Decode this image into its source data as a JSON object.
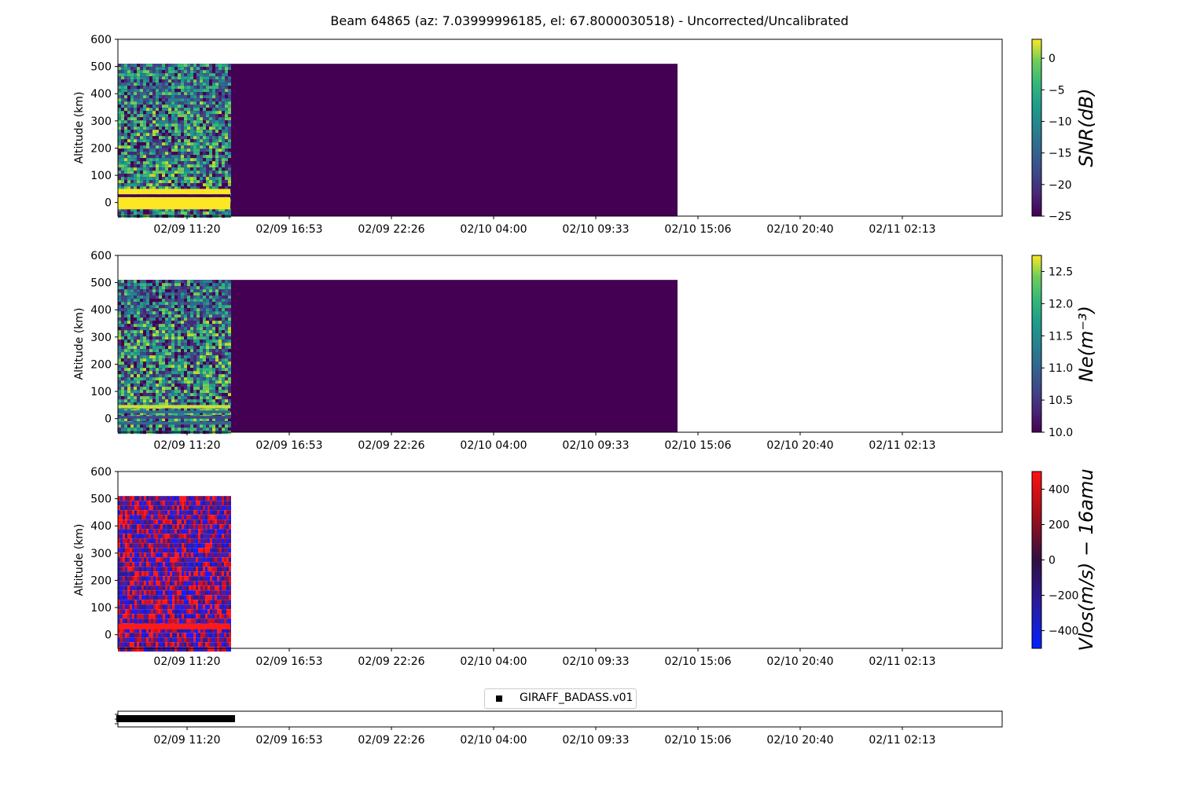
{
  "figure": {
    "title": "Beam 64865 (az: 7.03999996185, el: 67.8000030518) - Uncorrected/Uncalibrated"
  },
  "x_ticks": [
    "02/09 11:20",
    "02/09 16:53",
    "02/09 22:26",
    "02/10 04:00",
    "02/10 09:33",
    "02/10 15:06",
    "02/10 20:40",
    "02/11 02:13"
  ],
  "chart_data": [
    {
      "type": "heatmap",
      "name": "snr-panel",
      "ylabel": "Altitude (km)",
      "ylim": [
        -50,
        600
      ],
      "y_ticks": [
        0,
        100,
        200,
        300,
        400,
        500,
        600
      ],
      "x_ticks": [
        "02/09 11:20",
        "02/09 16:53",
        "02/09 22:26",
        "02/10 04:00",
        "02/10 09:33",
        "02/10 15:06",
        "02/10 20:40",
        "02/11 02:13"
      ],
      "colorbar": {
        "label": "SNR(dB)",
        "range": [
          -25,
          3
        ],
        "ticks": [
          -25,
          -20,
          -15,
          -10,
          -5,
          0
        ],
        "colormap": "viridis"
      },
      "data_altitude_range": [
        -50,
        510
      ],
      "observed_x_end": "02/09 14:40",
      "padded_x_end": "02/10 13:55",
      "fill_value": -25
    },
    {
      "type": "heatmap",
      "name": "ne-panel",
      "ylabel": "Altitude (km)",
      "ylim": [
        -50,
        600
      ],
      "y_ticks": [
        0,
        100,
        200,
        300,
        400,
        500,
        600
      ],
      "x_ticks": [
        "02/09 11:20",
        "02/09 16:53",
        "02/09 22:26",
        "02/10 04:00",
        "02/10 09:33",
        "02/10 15:06",
        "02/10 20:40",
        "02/11 02:13"
      ],
      "colorbar": {
        "label": "Ne(m⁻³)",
        "range": [
          10,
          12.75
        ],
        "ticks": [
          "10.0",
          "10.5",
          "11.0",
          "11.5",
          "12.0",
          "12.5"
        ],
        "colormap": "viridis"
      },
      "data_altitude_range": [
        -50,
        510
      ],
      "observed_x_end": "02/09 14:40",
      "padded_x_end": "02/10 13:55",
      "fill_value": 10
    },
    {
      "type": "heatmap",
      "name": "vlos-panel",
      "ylabel": "Altitude (km)",
      "ylim": [
        -50,
        600
      ],
      "y_ticks": [
        0,
        100,
        200,
        300,
        400,
        500,
        600
      ],
      "x_ticks": [
        "02/09 11:20",
        "02/09 16:53",
        "02/09 22:26",
        "02/10 04:00",
        "02/10 09:33",
        "02/10 15:06",
        "02/10 20:40",
        "02/11 02:13"
      ],
      "colorbar": {
        "label": "Vlos(m/s) − 16amu",
        "range": [
          -500,
          500
        ],
        "ticks": [
          -400,
          -200,
          0,
          200,
          400
        ],
        "colormap": "blue-black-red"
      },
      "data_altitude_range": [
        -50,
        510
      ],
      "observed_x_end": "02/09 14:40"
    },
    {
      "type": "scatter",
      "name": "timeline-panel",
      "legend": [
        "GIRAFF_BADASS.v01"
      ],
      "legend_position": "top-center",
      "x_ticks": [
        "02/09 11:20",
        "02/09 16:53",
        "02/09 22:26",
        "02/10 04:00",
        "02/10 09:33",
        "02/10 15:06",
        "02/10 20:40",
        "02/11 02:13"
      ],
      "x_range": [
        "02/09 07:20",
        "02/09 14:45"
      ],
      "marker": "square",
      "color": "#000000"
    }
  ],
  "colors": {
    "fill_purple": "#440154",
    "viridis_yellow": "#fde725",
    "vlos_red": "#ff1a1a",
    "vlos_blue": "#1a1aff"
  }
}
